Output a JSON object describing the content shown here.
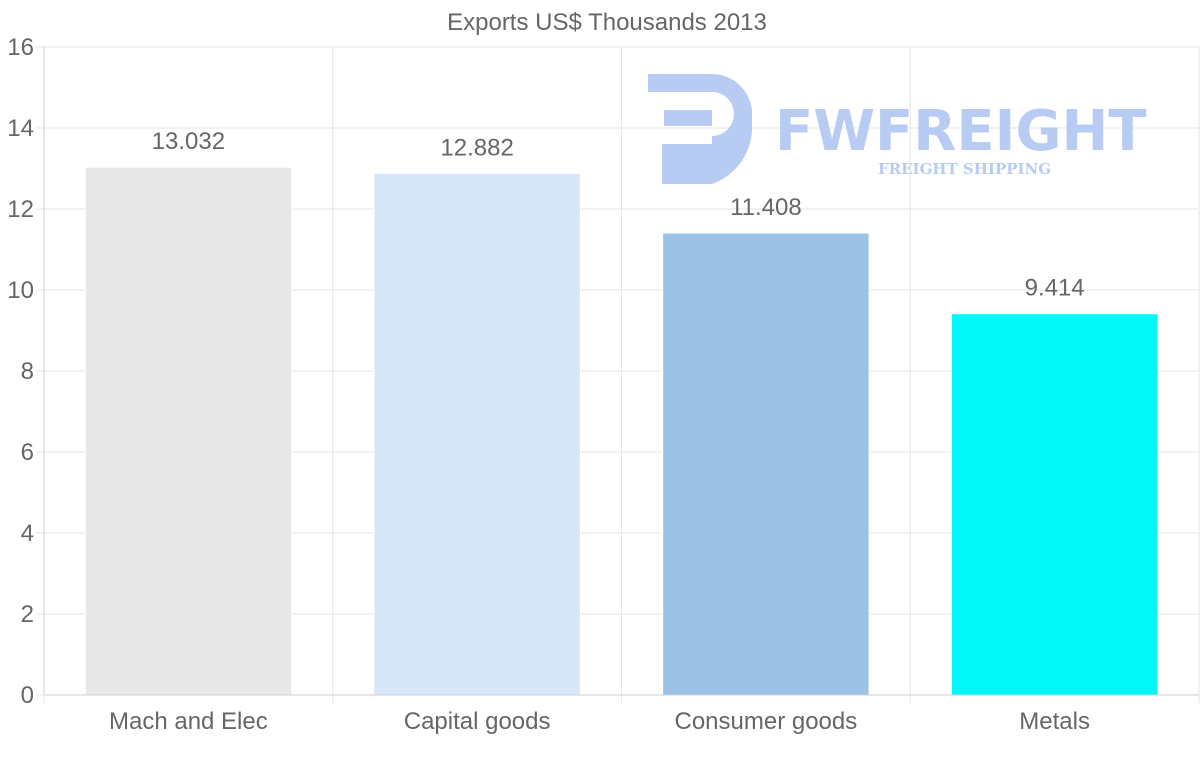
{
  "chart_data": {
    "type": "bar",
    "title": "Exports US$ Thousands 2013",
    "categories": [
      "Mach and Elec",
      "Capital goods",
      "Consumer goods",
      "Metals"
    ],
    "values": [
      13.032,
      12.882,
      11.408,
      9.414
    ],
    "value_labels": [
      "13.032",
      "12.882",
      "11.408",
      "9.414"
    ],
    "colors": [
      "#e8e8e8",
      "#d7e7f8",
      "#9cc3e6",
      "#00f8f8"
    ],
    "ylim": [
      0,
      16
    ],
    "yticks": [
      0,
      2,
      4,
      6,
      8,
      10,
      12,
      14,
      16
    ],
    "xlabel": "",
    "ylabel": "",
    "grid": true,
    "legend": "none"
  },
  "watermark": {
    "brand": "FWFREIGHT",
    "tagline": "FREIGHT SHIPPING",
    "color": "#b7cbf3"
  }
}
